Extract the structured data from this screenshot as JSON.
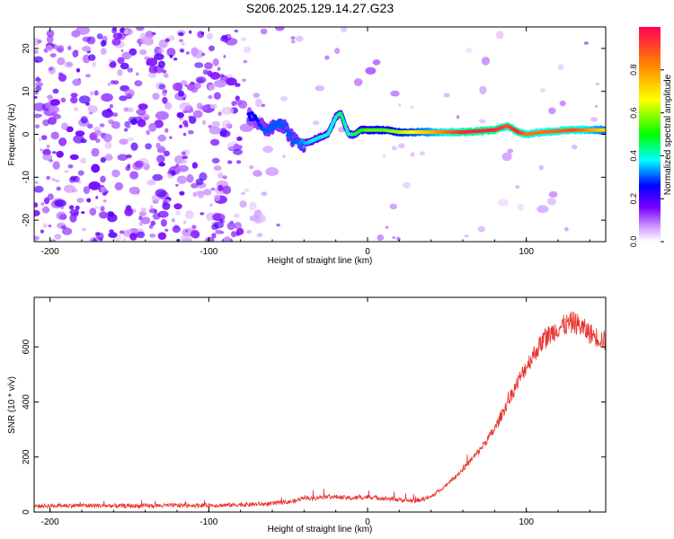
{
  "title": "S206.2025.129.14.27.G23",
  "chart_data": [
    {
      "type": "heatmap",
      "name": "spectrogram",
      "xlabel": "Height of straight line (km)",
      "ylabel": "Frequency (Hz)",
      "xlim": [
        -210,
        150
      ],
      "ylim": [
        -25,
        25
      ],
      "xticks": [
        -200,
        -100,
        0,
        100
      ],
      "yticks": [
        -20,
        -10,
        0,
        10,
        20
      ],
      "colorbar": {
        "label": "Normalized spectral amplitude",
        "range": [
          0,
          1
        ],
        "ticks": [
          "0.0",
          "0.2",
          "0.4",
          "0.6",
          "0.8"
        ],
        "tick_values": [
          0,
          0.2,
          0.4,
          0.6,
          0.8
        ]
      },
      "signal_track": {
        "description_points_x_km": [
          -72,
          -65,
          -55,
          -45,
          -38,
          -32,
          -25,
          -20,
          -17,
          -12,
          -8,
          -4,
          0,
          10,
          20,
          40,
          60,
          80,
          88,
          95,
          100,
          110,
          130,
          150
        ],
        "frequency_hz": [
          4,
          1,
          3,
          -2,
          -2,
          -1,
          0,
          4,
          5,
          0,
          0,
          1,
          1,
          1,
          0.5,
          0.5,
          0.5,
          1,
          2,
          0.5,
          0,
          0.5,
          1,
          1
        ],
        "amplitude": [
          0.25,
          0.3,
          0.3,
          0.3,
          0.35,
          0.4,
          0.4,
          0.4,
          0.45,
          0.4,
          0.45,
          0.5,
          0.55,
          0.55,
          0.6,
          0.75,
          0.95,
          0.95,
          0.9,
          0.95,
          0.85,
          0.85,
          0.9,
          0.7
        ]
      }
    },
    {
      "type": "line",
      "name": "snr",
      "xlabel": "Height of straight line (km)",
      "ylabel": "SNR (10 * v/v)",
      "xlim": [
        -210,
        150
      ],
      "ylim": [
        0,
        780
      ],
      "xticks": [
        -200,
        -100,
        0,
        100
      ],
      "yticks": [
        0,
        200,
        400,
        600
      ],
      "series": [
        {
          "name": "SNR",
          "color": "#e8342f",
          "x": [
            -210,
            -180,
            -150,
            -120,
            -90,
            -60,
            -45,
            -40,
            -35,
            -30,
            -20,
            -10,
            0,
            10,
            20,
            30,
            40,
            50,
            60,
            70,
            80,
            90,
            100,
            110,
            120,
            130,
            140,
            150
          ],
          "y": [
            22,
            24,
            22,
            24,
            25,
            30,
            40,
            55,
            48,
            55,
            55,
            50,
            55,
            50,
            45,
            40,
            55,
            100,
            155,
            220,
            300,
            420,
            530,
            620,
            670,
            690,
            650,
            620
          ]
        }
      ]
    }
  ]
}
